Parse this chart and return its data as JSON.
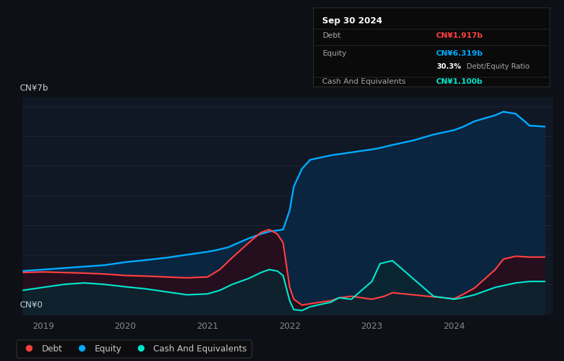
{
  "background_color": "#0d1117",
  "plot_bg_color": "#111825",
  "ylabel_top": "CN¥7b",
  "ylabel_bottom": "CN¥0",
  "xlim_start": 2018.75,
  "xlim_end": 2025.2,
  "ylim": [
    0,
    7.3
  ],
  "xtick_labels": [
    "2019",
    "2020",
    "2021",
    "2022",
    "2023",
    "2024"
  ],
  "xtick_positions": [
    2019,
    2020,
    2021,
    2022,
    2023,
    2024
  ],
  "grid_color": "#1e2535",
  "grid_y_values": [
    1,
    2,
    3,
    4,
    5,
    6,
    7
  ],
  "tooltip": {
    "date": "Sep 30 2024",
    "debt_label": "Debt",
    "debt_value": "CN¥1.917b",
    "debt_color": "#ff4040",
    "equity_label": "Equity",
    "equity_value": "CN¥6.319b",
    "equity_color": "#00aaff",
    "ratio_bold": "30.3%",
    "ratio_text": " Debt/Equity Ratio",
    "cash_label": "Cash And Equivalents",
    "cash_value": "CN¥1.100b",
    "cash_color": "#00e5cc",
    "bg": "#0a0a0a",
    "border": "#2a2a2a",
    "text_color": "#aaaaaa"
  },
  "equity": {
    "color": "#00aaff",
    "fill_color": "#0a2040",
    "x": [
      2018.75,
      2019.0,
      2019.25,
      2019.5,
      2019.75,
      2020.0,
      2020.25,
      2020.5,
      2020.75,
      2021.0,
      2021.1,
      2021.25,
      2021.5,
      2021.65,
      2021.75,
      2021.85,
      2021.92,
      2022.0,
      2022.05,
      2022.15,
      2022.25,
      2022.5,
      2022.75,
      2023.0,
      2023.1,
      2023.25,
      2023.5,
      2023.75,
      2024.0,
      2024.1,
      2024.25,
      2024.5,
      2024.6,
      2024.75,
      2024.92,
      2025.1
    ],
    "y": [
      1.45,
      1.5,
      1.55,
      1.6,
      1.65,
      1.75,
      1.82,
      1.9,
      2.0,
      2.1,
      2.15,
      2.25,
      2.55,
      2.7,
      2.78,
      2.82,
      2.85,
      3.5,
      4.3,
      4.9,
      5.2,
      5.35,
      5.45,
      5.55,
      5.6,
      5.7,
      5.85,
      6.05,
      6.2,
      6.3,
      6.5,
      6.7,
      6.82,
      6.75,
      6.35,
      6.32
    ]
  },
  "debt": {
    "color": "#ff4040",
    "x": [
      2018.75,
      2019.0,
      2019.25,
      2019.5,
      2019.75,
      2020.0,
      2020.25,
      2020.5,
      2020.75,
      2021.0,
      2021.15,
      2021.3,
      2021.5,
      2021.65,
      2021.75,
      2021.85,
      2021.92,
      2022.0,
      2022.05,
      2022.15,
      2022.25,
      2022.5,
      2022.6,
      2022.75,
      2023.0,
      2023.15,
      2023.25,
      2023.5,
      2023.75,
      2024.0,
      2024.1,
      2024.25,
      2024.5,
      2024.6,
      2024.75,
      2024.92,
      2025.1
    ],
    "y": [
      1.4,
      1.42,
      1.4,
      1.38,
      1.35,
      1.3,
      1.28,
      1.25,
      1.22,
      1.25,
      1.5,
      1.9,
      2.4,
      2.75,
      2.85,
      2.7,
      2.4,
      0.9,
      0.5,
      0.3,
      0.35,
      0.45,
      0.55,
      0.6,
      0.5,
      0.6,
      0.72,
      0.65,
      0.58,
      0.52,
      0.65,
      0.88,
      1.5,
      1.85,
      1.95,
      1.92,
      1.92
    ]
  },
  "cash": {
    "color": "#00e5cc",
    "x": [
      2018.75,
      2019.0,
      2019.25,
      2019.5,
      2019.75,
      2020.0,
      2020.25,
      2020.5,
      2020.75,
      2021.0,
      2021.15,
      2021.3,
      2021.5,
      2021.65,
      2021.75,
      2021.85,
      2021.92,
      2022.0,
      2022.05,
      2022.15,
      2022.25,
      2022.5,
      2022.6,
      2022.75,
      2023.0,
      2023.1,
      2023.25,
      2023.5,
      2023.75,
      2024.0,
      2024.1,
      2024.25,
      2024.5,
      2024.75,
      2024.92,
      2025.1
    ],
    "y": [
      0.8,
      0.9,
      1.0,
      1.05,
      1.0,
      0.92,
      0.85,
      0.75,
      0.65,
      0.68,
      0.8,
      1.0,
      1.2,
      1.4,
      1.5,
      1.45,
      1.3,
      0.45,
      0.15,
      0.12,
      0.25,
      0.4,
      0.55,
      0.5,
      1.1,
      1.7,
      1.8,
      1.2,
      0.6,
      0.5,
      0.55,
      0.65,
      0.9,
      1.05,
      1.1,
      1.1
    ]
  },
  "legend": [
    {
      "label": "Debt",
      "color": "#ff4040"
    },
    {
      "label": "Equity",
      "color": "#00aaff"
    },
    {
      "label": "Cash And Equivalents",
      "color": "#00e5cc"
    }
  ]
}
